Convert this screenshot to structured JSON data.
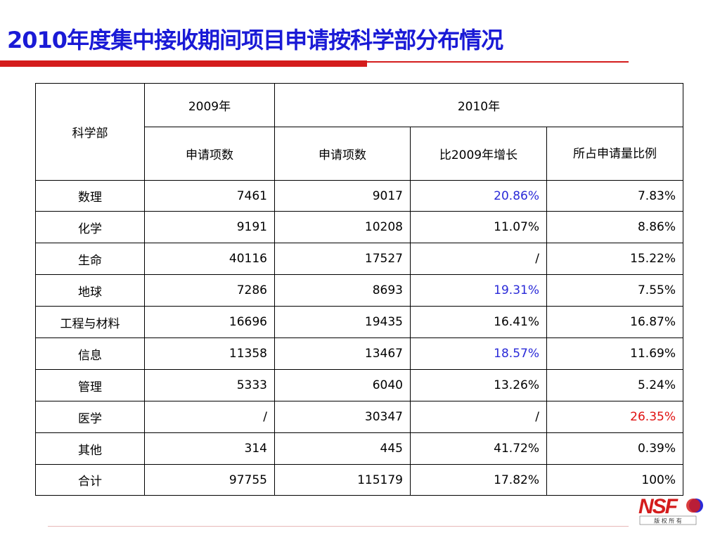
{
  "title": "2010年度集中接收期间项目申请按科学部分布情况",
  "table": {
    "header_dept": "科学部",
    "header_2009": "2009年",
    "header_2010": "2010年",
    "sub_apps_2009": "申请项数",
    "sub_apps_2010": "申请项数",
    "sub_growth": "比2009年增长",
    "sub_ratio": "所占申请量比例",
    "rows": [
      {
        "dept": "数理",
        "y2009": "7461",
        "y2010": "9017",
        "growth": "20.86%",
        "ratio": "7.83%"
      },
      {
        "dept": "化学",
        "y2009": "9191",
        "y2010": "10208",
        "growth": "11.07%",
        "ratio": "8.86%"
      },
      {
        "dept": "生命",
        "y2009": "40116",
        "y2010": "17527",
        "growth": "/",
        "ratio": "15.22%"
      },
      {
        "dept": "地球",
        "y2009": "7286",
        "y2010": "8693",
        "growth": "19.31%",
        "ratio": "7.55%"
      },
      {
        "dept": "工程与材料",
        "y2009": "16696",
        "y2010": "19435",
        "growth": "16.41%",
        "ratio": "16.87%"
      },
      {
        "dept": "信息",
        "y2009": "11358",
        "y2010": "13467",
        "growth": "18.57%",
        "ratio": "11.69%"
      },
      {
        "dept": "管理",
        "y2009": "5333",
        "y2010": "6040",
        "growth": "13.26%",
        "ratio": "5.24%"
      },
      {
        "dept": "医学",
        "y2009": "/",
        "y2010": "30347",
        "growth": "/",
        "ratio": "26.35%"
      },
      {
        "dept": "其他",
        "y2009": "314",
        "y2010": "445",
        "growth": "41.72%",
        "ratio": "0.39%"
      },
      {
        "dept": "合计",
        "y2009": "97755",
        "y2010": "115179",
        "growth": "17.82%",
        "ratio": "100%"
      }
    ]
  },
  "colors": {
    "title": "#1a1ad6",
    "rule": "#d41c1c",
    "highlight_blue": "#2a2ad8",
    "highlight_red": "#e01010"
  },
  "logo": {
    "text": "NSF",
    "subtitle": "版 权 所 有"
  }
}
